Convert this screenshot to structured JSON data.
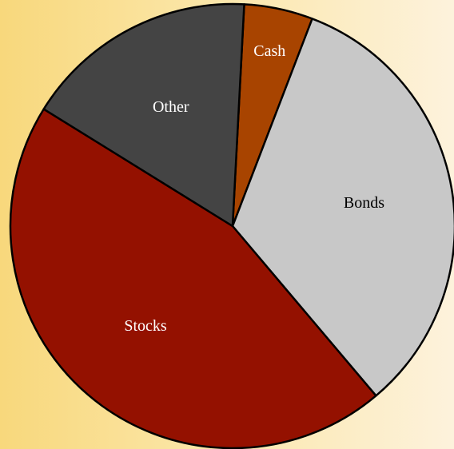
{
  "chart_data": {
    "type": "pie",
    "categories": [
      "Cash",
      "Bonds",
      "Stocks",
      "Other"
    ],
    "values": [
      5,
      33,
      45,
      17
    ],
    "colors": [
      "#a84400",
      "#c8c8c8",
      "#941100",
      "#444444"
    ],
    "label_colors": [
      "#ffffff",
      "#000000",
      "#ffffff",
      "#ffffff"
    ]
  }
}
